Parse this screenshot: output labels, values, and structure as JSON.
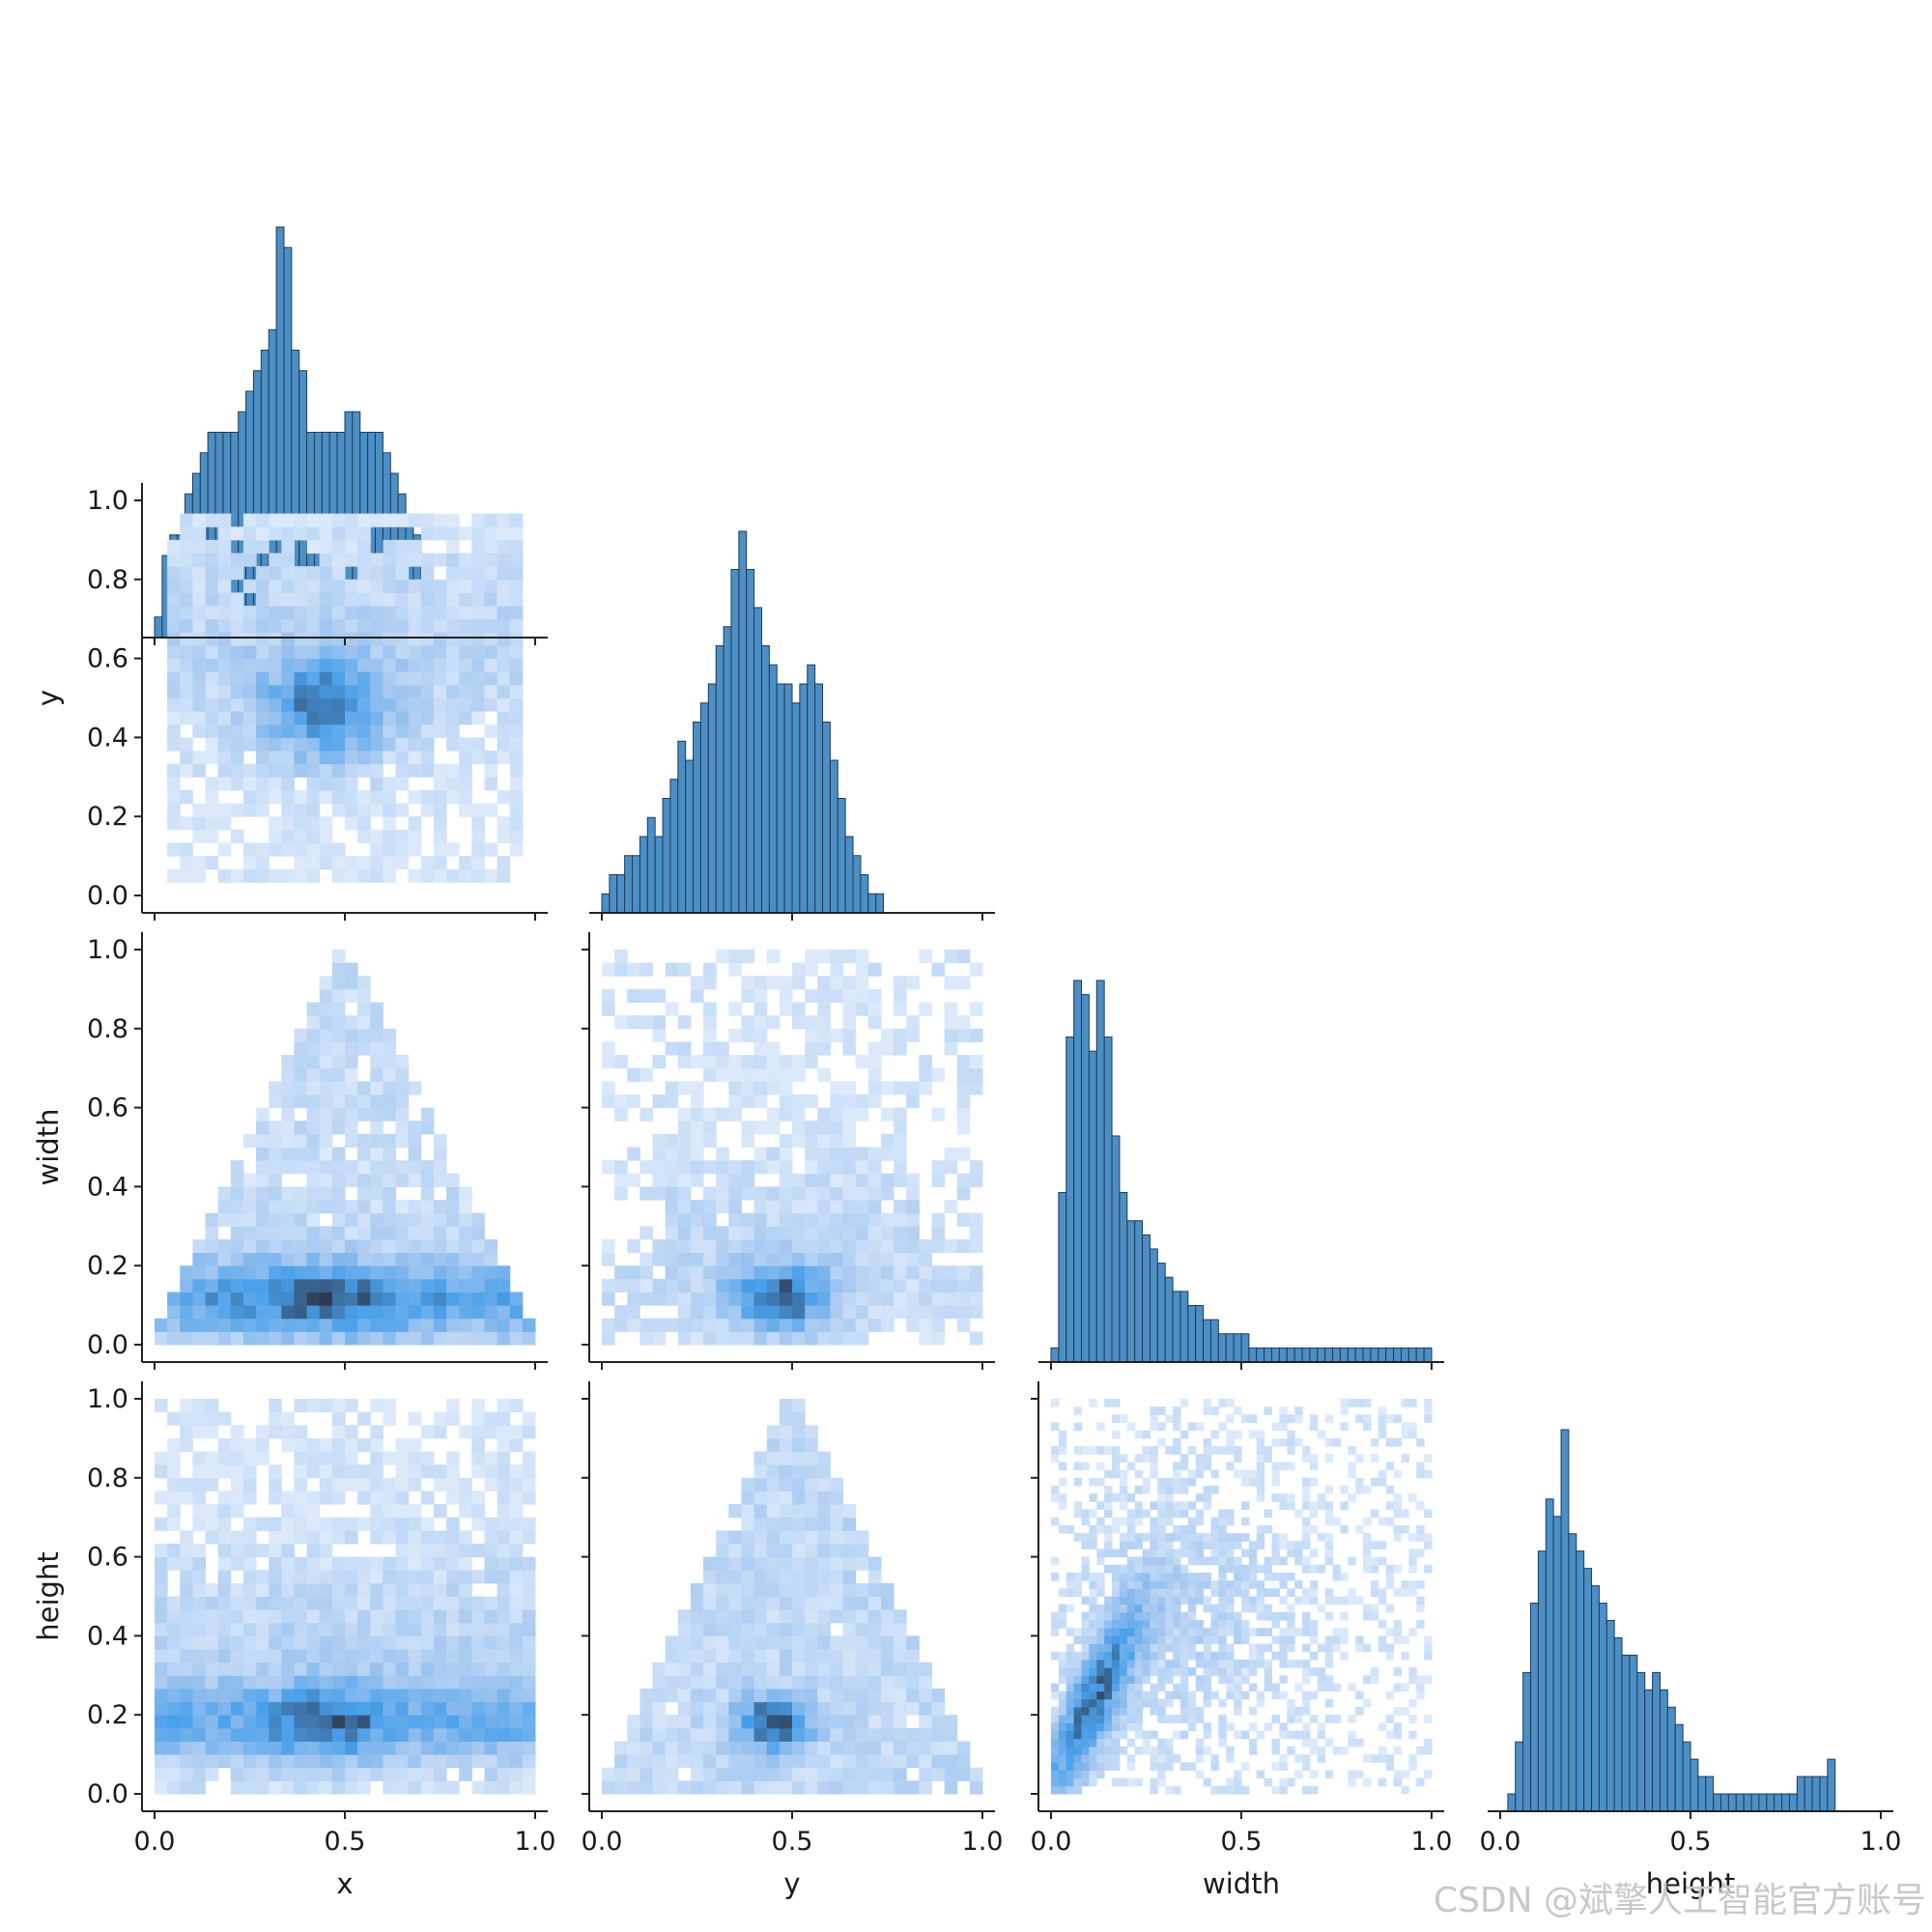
{
  "chart_data": {
    "type": "pairplot",
    "variables": [
      "x",
      "y",
      "width",
      "height"
    ],
    "axis_labels": [
      "x",
      "y",
      "width",
      "height"
    ],
    "ylim": [
      -0.04,
      1.04
    ],
    "xlim": [
      -0.04,
      1.04
    ],
    "ticks": [
      0.0,
      0.2,
      0.4,
      0.6,
      0.8,
      1.0
    ],
    "bottom_ticks": [
      0.0,
      0.5,
      1.0
    ],
    "grid": false,
    "corner": true,
    "colors": {
      "hist": "#4c8fc4",
      "hist_edge": "#1f3a5a",
      "cmap_low": "#dbe9fb",
      "cmap_mid": "#4aa0ea",
      "cmap_high": "#2c3a52"
    },
    "diagonal_histograms": {
      "x": {
        "bin_width": 0.02,
        "values": [
          1,
          4,
          5,
          5,
          7,
          8,
          9,
          10,
          10,
          10,
          10,
          11,
          12,
          13,
          14,
          15,
          20,
          19,
          14,
          13,
          10,
          10,
          10,
          10,
          10,
          11,
          11,
          10,
          10,
          10,
          9,
          8,
          7,
          6,
          5,
          4,
          2,
          1
        ]
      },
      "y": {
        "bin_width": 0.02,
        "values": [
          1,
          2,
          2,
          3,
          3,
          4,
          5,
          4,
          6,
          7,
          9,
          8,
          10,
          11,
          12,
          14,
          15,
          18,
          20,
          18,
          16,
          14,
          13,
          12,
          12,
          11,
          12,
          13,
          12,
          10,
          8,
          6,
          4,
          3,
          2,
          1,
          1,
          0
        ]
      },
      "width": {
        "bin_width": 0.02,
        "values": [
          1,
          12,
          23,
          27,
          26,
          22,
          27,
          23,
          16,
          12,
          10,
          10,
          9,
          8,
          7,
          6,
          5,
          5,
          4,
          4,
          3,
          3,
          2,
          2,
          2,
          2,
          1,
          1,
          1,
          1,
          1,
          1,
          1,
          1,
          1,
          1,
          1,
          1,
          1,
          1,
          1,
          1,
          1,
          1,
          1,
          1,
          1,
          1,
          1,
          1
        ]
      },
      "height": {
        "bin_width": 0.02,
        "values": [
          0,
          1,
          4,
          8,
          12,
          15,
          18,
          17,
          22,
          16,
          15,
          14,
          13,
          12,
          11,
          10,
          9,
          9,
          8,
          7,
          8,
          7,
          6,
          5,
          4,
          3,
          2,
          2,
          1,
          1,
          1,
          1,
          1,
          1,
          1,
          1,
          1,
          1,
          1,
          2,
          2,
          2,
          2,
          3
        ]
      }
    },
    "bivariate_histograms": [
      {
        "x": "x",
        "y": "y",
        "description_density_peak": [
          0.45,
          0.45
        ]
      },
      {
        "x": "x",
        "y": "width",
        "description_density_peak": [
          0.45,
          0.12
        ]
      },
      {
        "x": "y",
        "y": "width",
        "description_density_peak": [
          0.45,
          0.12
        ]
      },
      {
        "x": "x",
        "y": "height",
        "description_density_peak": [
          0.45,
          0.18
        ]
      },
      {
        "x": "y",
        "y": "height",
        "description_density_peak": [
          0.45,
          0.18
        ]
      },
      {
        "x": "width",
        "y": "height",
        "description_density_peak": [
          0.08,
          0.15
        ]
      }
    ]
  },
  "watermark": "CSDN @斌擎人工智能官方账号"
}
